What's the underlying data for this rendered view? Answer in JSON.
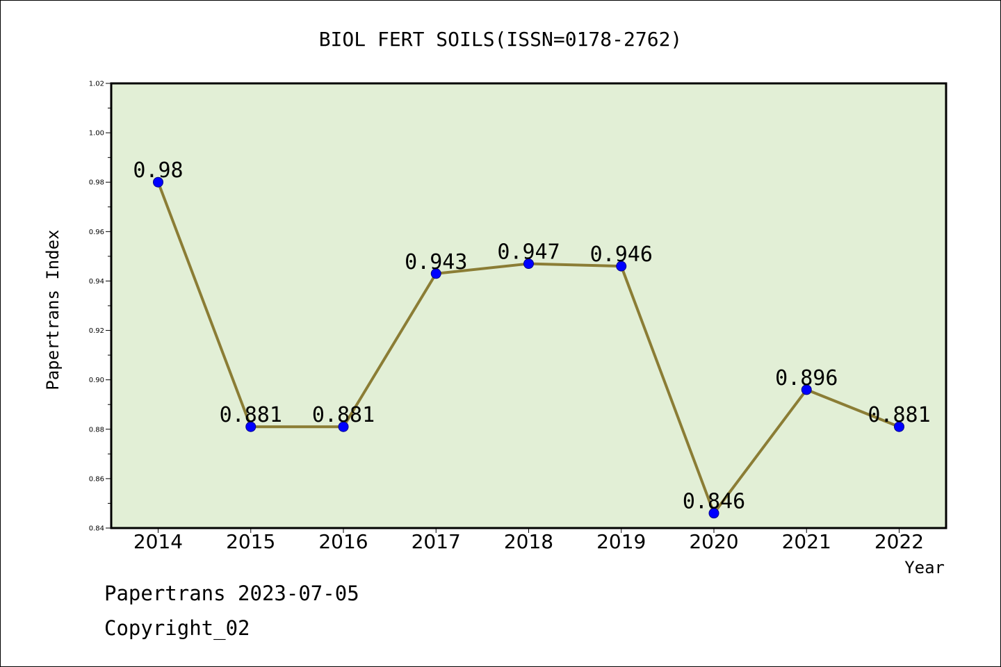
{
  "chart_data": {
    "type": "line",
    "title": "BIOL FERT SOILS(ISSN=0178-2762)",
    "xlabel": "Year",
    "ylabel": "Papertrans Index",
    "categories": [
      "2014",
      "2015",
      "2016",
      "2017",
      "2018",
      "2019",
      "2020",
      "2021",
      "2022"
    ],
    "series": [
      {
        "values": [
          0.98,
          0.881,
          0.881,
          0.943,
          0.947,
          0.946,
          0.846,
          0.896,
          0.881
        ]
      }
    ],
    "data_labels": [
      "0.98",
      "0.881",
      "0.881",
      "0.943",
      "0.947",
      "0.946",
      "0.846",
      "0.896",
      "0.881"
    ],
    "ylim": [
      0.84,
      1.02
    ],
    "y_ticks": [
      "0.84",
      "0.86",
      "0.88",
      "0.90",
      "0.92",
      "0.94",
      "0.96",
      "0.98",
      "1.00",
      "1.02"
    ],
    "grid": false,
    "colors": {
      "plot_background": "#e2efd6",
      "line": "#8b7d35",
      "marker": "#0000ff"
    }
  },
  "footer": {
    "line1": "Papertrans 2023-07-05",
    "line2": "Copyright_02"
  }
}
